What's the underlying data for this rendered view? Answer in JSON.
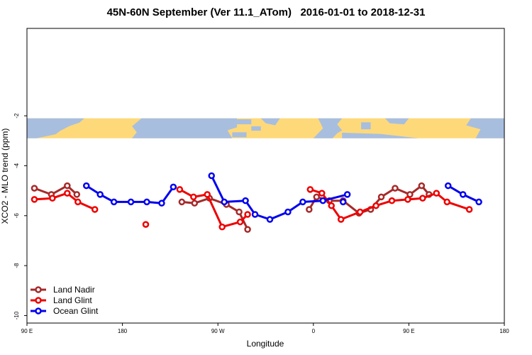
{
  "chart_data": {
    "type": "line",
    "title": "45N-60N September (Ver 11.1_ATom)   2016-01-01 to 2018-12-31",
    "xlabel": "Longitude",
    "ylabel": "XCO2 - MLO trend (ppm)",
    "xlim": [
      90,
      540
    ],
    "ylim": [
      -10.3,
      1.5
    ],
    "x_ticks": [
      {
        "value": 90,
        "label": "90 E"
      },
      {
        "value": 180,
        "label": "180"
      },
      {
        "value": 270,
        "label": "90 W"
      },
      {
        "value": 360,
        "label": "0"
      },
      {
        "value": 450,
        "label": "90 E"
      },
      {
        "value": 540,
        "label": "180"
      }
    ],
    "y_ticks": [
      {
        "value": -2,
        "label": "-2"
      },
      {
        "value": -4,
        "label": "-4"
      },
      {
        "value": -6,
        "label": "-6"
      },
      {
        "value": -8,
        "label": "-8"
      },
      {
        "value": -10,
        "label": "-10"
      }
    ],
    "map_band": {
      "ymin": -2.9,
      "ymax": -2.1,
      "ocean_color": "#a8bedf",
      "land_color": "#fed97a"
    },
    "legend_position": "bottom-left",
    "series": [
      {
        "name": "Land Nadir",
        "color": "#a52a2a",
        "segments": [
          [
            [
              97,
              -4.9
            ],
            [
              113,
              -5.15
            ],
            [
              128,
              -4.8
            ],
            [
              137,
              -5.15
            ]
          ],
          [
            [
              236,
              -5.45
            ],
            [
              248,
              -5.5
            ],
            [
              262,
              -5.3
            ],
            [
              278,
              -5.55
            ],
            [
              290,
              -5.85
            ],
            [
              298,
              -6.55
            ]
          ],
          [
            [
              356,
              -5.75
            ],
            [
              363,
              -5.25
            ],
            [
              375,
              -5.4
            ],
            [
              388,
              -5.4
            ],
            [
              403,
              -5.9
            ],
            [
              414,
              -5.75
            ],
            [
              424,
              -5.25
            ],
            [
              437,
              -4.9
            ],
            [
              451,
              -5.15
            ],
            [
              462,
              -4.8
            ],
            [
              469,
              -5.15
            ]
          ]
        ]
      },
      {
        "name": "Land Glint",
        "color": "#ee0000",
        "segments": [
          [
            [
              97,
              -5.35
            ],
            [
              114,
              -5.3
            ],
            [
              128,
              -5.1
            ],
            [
              138,
              -5.45
            ],
            [
              154,
              -5.75
            ]
          ],
          [
            [
              202,
              -6.35
            ]
          ],
          [
            [
              234,
              -4.95
            ],
            [
              247,
              -5.25
            ],
            [
              260,
              -5.15
            ],
            [
              274,
              -6.45
            ],
            [
              291,
              -6.25
            ],
            [
              298,
              -5.95
            ]
          ],
          [
            [
              357,
              -4.95
            ],
            [
              368,
              -5.1
            ],
            [
              377,
              -5.6
            ],
            [
              386,
              -6.15
            ],
            [
              404,
              -5.85
            ],
            [
              419,
              -5.6
            ],
            [
              434,
              -5.4
            ],
            [
              449,
              -5.35
            ],
            [
              463,
              -5.3
            ],
            [
              476,
              -5.1
            ],
            [
              486,
              -5.45
            ],
            [
              507,
              -5.75
            ]
          ]
        ]
      },
      {
        "name": "Ocean Glint",
        "color": "#0000ee",
        "segments": [
          [
            [
              146,
              -4.8
            ],
            [
              159,
              -5.15
            ],
            [
              172,
              -5.45
            ],
            [
              188,
              -5.45
            ],
            [
              203,
              -5.45
            ],
            [
              217,
              -5.5
            ],
            [
              228,
              -4.85
            ]
          ],
          [
            [
              264,
              -4.4
            ],
            [
              276,
              -5.45
            ],
            [
              296,
              -5.4
            ],
            [
              305,
              -5.95
            ],
            [
              319,
              -6.15
            ],
            [
              336,
              -5.85
            ],
            [
              350,
              -5.45
            ],
            [
              369,
              -5.4
            ],
            [
              392,
              -5.15
            ]
          ],
          [
            [
              388,
              -5.45
            ]
          ],
          [
            [
              487,
              -4.8
            ],
            [
              501,
              -5.15
            ],
            [
              516,
              -5.45
            ]
          ]
        ]
      }
    ]
  }
}
